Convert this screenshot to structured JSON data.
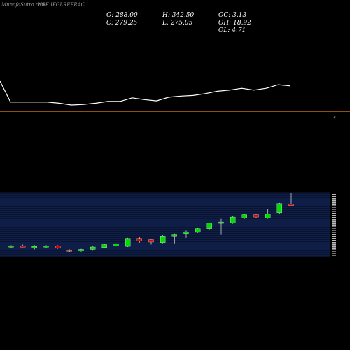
{
  "header": {
    "watermark": "MunafaSutra.com",
    "ticker": "NSE IFGLREFRAC",
    "open": "O: 288.00",
    "close": "C: 279.25",
    "high": "H: 342.50",
    "low": "L: 275.05",
    "oc": "OC: 3.13",
    "oh": "OH: 18.92",
    "ol": "OL: 4.71"
  },
  "chart_data": [
    {
      "type": "line",
      "description_of_colors": {
        "line": "#ffffff",
        "reference": "#e8801a"
      },
      "x": [
        1,
        2,
        3,
        4,
        5,
        6,
        7,
        8,
        9,
        10,
        11,
        12,
        13,
        14,
        15,
        16,
        17,
        18,
        19,
        20,
        21,
        22,
        23,
        24,
        25
      ],
      "values": [
        240,
        205,
        205,
        205,
        205,
        203,
        200,
        201,
        203,
        206,
        206,
        212,
        209,
        207,
        213,
        215,
        216,
        219,
        223,
        225,
        228,
        225,
        228,
        234,
        232
      ],
      "reference_value": 190,
      "reference_label": "4",
      "ylim": [
        170,
        330
      ]
    },
    {
      "type": "candlestick",
      "colors": {
        "up": "#00dd00",
        "down": "#dd0000",
        "grid": "#1f3a8c",
        "background": "#0a1430"
      },
      "candles": [
        {
          "o": 127,
          "h": 129,
          "l": 125,
          "c": 128
        },
        {
          "o": 128,
          "h": 130,
          "l": 126,
          "c": 127
        },
        {
          "o": 127,
          "h": 129,
          "l": 122,
          "c": 127
        },
        {
          "o": 126,
          "h": 129,
          "l": 125,
          "c": 128
        },
        {
          "o": 128,
          "h": 129,
          "l": 123,
          "c": 124
        },
        {
          "o": 121,
          "h": 122,
          "l": 118,
          "c": 120
        },
        {
          "o": 120,
          "h": 123,
          "l": 118,
          "c": 122
        },
        {
          "o": 122,
          "h": 127,
          "l": 121,
          "c": 126
        },
        {
          "o": 125,
          "h": 131,
          "l": 124,
          "c": 130
        },
        {
          "o": 128,
          "h": 132,
          "l": 127,
          "c": 131
        },
        {
          "o": 127,
          "h": 141,
          "l": 126,
          "c": 140
        },
        {
          "o": 140,
          "h": 142,
          "l": 133,
          "c": 136
        },
        {
          "o": 138,
          "h": 139,
          "l": 130,
          "c": 134
        },
        {
          "o": 133,
          "h": 146,
          "l": 132,
          "c": 144
        },
        {
          "o": 144,
          "h": 148,
          "l": 132,
          "c": 147
        },
        {
          "o": 148,
          "h": 153,
          "l": 141,
          "c": 151
        },
        {
          "o": 150,
          "h": 158,
          "l": 149,
          "c": 156
        },
        {
          "o": 156,
          "h": 166,
          "l": 155,
          "c": 165
        },
        {
          "o": 166,
          "h": 172,
          "l": 147,
          "c": 167
        },
        {
          "o": 165,
          "h": 177,
          "l": 164,
          "c": 175
        },
        {
          "o": 173,
          "h": 180,
          "l": 172,
          "c": 179
        },
        {
          "o": 179,
          "h": 180,
          "l": 174,
          "c": 175
        },
        {
          "o": 173,
          "h": 188,
          "l": 172,
          "c": 180
        },
        {
          "o": 182,
          "h": 198,
          "l": 180,
          "c": 197
        },
        {
          "o": 196,
          "h": 215,
          "l": 195,
          "c": 194
        }
      ],
      "ylim": [
        110,
        215
      ]
    }
  ]
}
